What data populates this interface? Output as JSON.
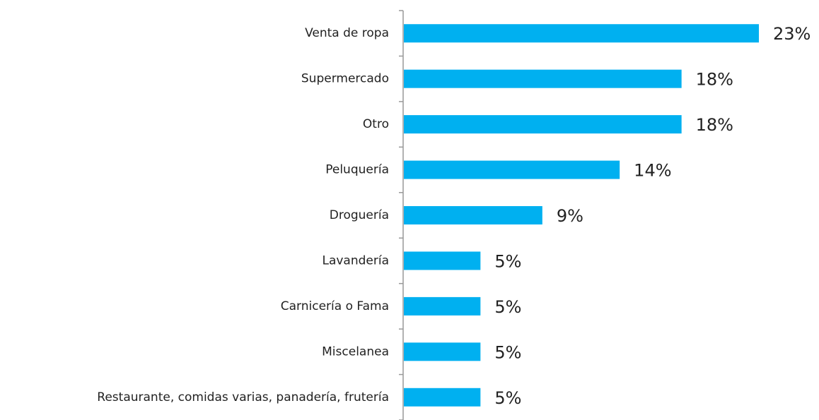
{
  "chart_data": {
    "type": "bar",
    "orientation": "horizontal",
    "categories": [
      "Venta de ropa",
      "Supermercado",
      "Otro",
      "Peluquería",
      "Droguería",
      "Lavandería",
      "Carnicería o Fama",
      "Miscelanea",
      "Restaurante, comidas varias, panadería, frutería"
    ],
    "values": [
      23,
      18,
      18,
      14,
      9,
      5,
      5,
      5,
      5
    ],
    "value_labels": [
      "23%",
      "18%",
      "18%",
      "14%",
      "9%",
      "5%",
      "5%",
      "5%",
      "5%"
    ],
    "color": "#00b0f0"
  }
}
